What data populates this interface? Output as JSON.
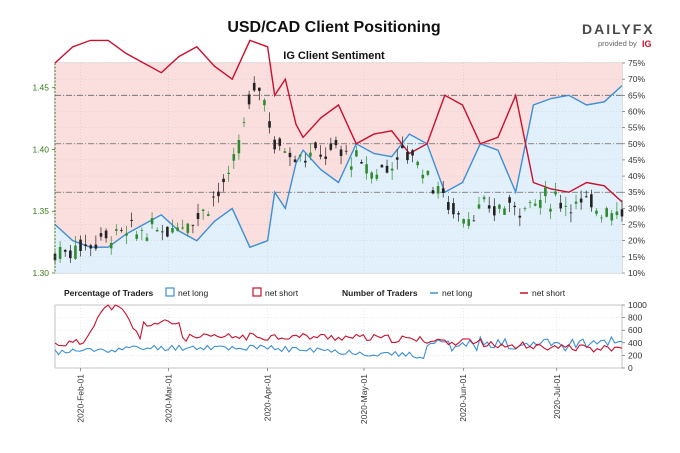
{
  "title": "USD/CAD Client Positioning",
  "brand": {
    "name": "DAILYFX",
    "provided_by": "provided by",
    "ig": "IG"
  },
  "colors": {
    "net_long": "#3d8fd4",
    "net_short": "#c8102e",
    "candle_up": "#2e8b2e",
    "candle_down": "#222222"
  },
  "chart_data": [
    {
      "type": "line",
      "title": "IG Client Sentiment",
      "y_left": {
        "ticks": [
          "1.45",
          "1.40",
          "1.35",
          "1.30"
        ],
        "values": [
          1.45,
          1.4,
          1.35,
          1.3
        ],
        "range": [
          1.3,
          1.47
        ]
      },
      "y_right": {
        "ticks": [
          "75%",
          "70%",
          "65%",
          "60%",
          "55%",
          "50%",
          "45%",
          "40%",
          "35%",
          "30%",
          "25%",
          "20%",
          "15%",
          "10%"
        ],
        "range": [
          10,
          75
        ]
      },
      "reference_lines": [
        65,
        50,
        35
      ],
      "x": [
        0,
        5,
        10,
        15,
        20,
        25,
        30,
        35,
        40,
        45,
        50,
        55,
        60,
        62,
        65,
        68,
        70,
        75,
        80,
        85,
        90,
        95,
        100,
        105,
        110,
        115,
        120,
        125,
        130,
        135,
        140,
        145,
        150,
        155,
        160
      ],
      "series": [
        {
          "name": "net long",
          "values": [
            25,
            20,
            18,
            18,
            22,
            25,
            28,
            23,
            20,
            26,
            30,
            18,
            20,
            35,
            30,
            44,
            48,
            42,
            38,
            50,
            47,
            46,
            53,
            50,
            35,
            38,
            50,
            48,
            35,
            62,
            64,
            65,
            62,
            63,
            68
          ]
        },
        {
          "name": "net short",
          "values": [
            75,
            80,
            82,
            82,
            78,
            75,
            72,
            77,
            80,
            74,
            70,
            82,
            80,
            65,
            70,
            56,
            52,
            58,
            62,
            50,
            53,
            54,
            47,
            50,
            65,
            62,
            50,
            52,
            65,
            38,
            36,
            35,
            38,
            37,
            32
          ]
        }
      ]
    },
    {
      "type": "line",
      "legend": {
        "percentage_label": "Percentage of Traders",
        "number_label": "Number of Traders",
        "net_long": "net long",
        "net_short": "net short"
      },
      "y_right": {
        "ticks": [
          "1000",
          "800",
          "600",
          "400",
          "200",
          "0"
        ],
        "range": [
          0,
          1000
        ]
      },
      "x_ticks": [
        "2020-Feb-01",
        "2020-Mar-01",
        "2020-Apr-01",
        "2020-May-01",
        "2020-Jun-01",
        "2020-Jul-01"
      ]
    }
  ]
}
